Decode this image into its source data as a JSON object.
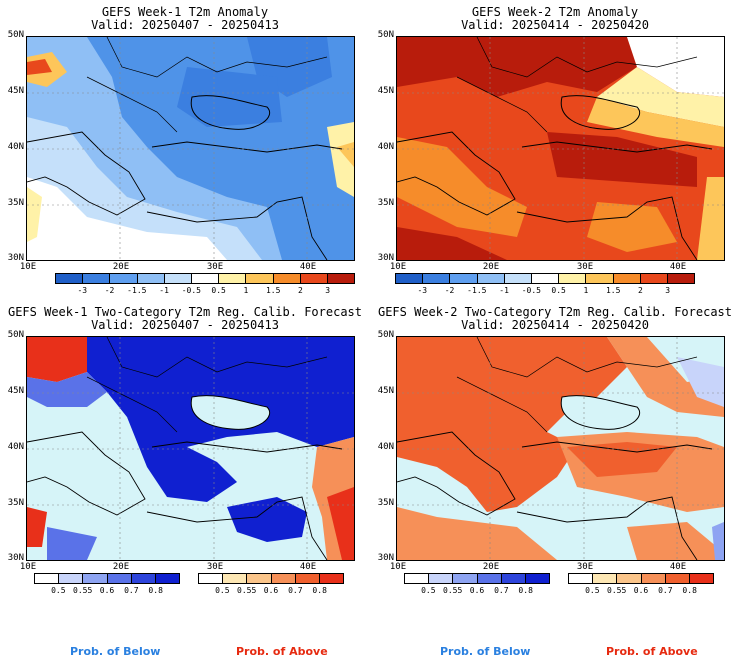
{
  "panels": [
    {
      "title": "GEFS Week-1 T2m Anomaly",
      "valid": "Valid: 20250407 - 20250413"
    },
    {
      "title": "GEFS Week-2 T2m Anomaly",
      "valid": "Valid: 20250414 - 20250420"
    },
    {
      "title": "GEFS Week-1 Two-Category T2m Reg. Calib. Forecast",
      "valid": "Valid: 20250407 - 20250413"
    },
    {
      "title": "GEFS Week-2 Two-Category T2m Reg. Calib. Forecast",
      "valid": "Valid: 20250414 - 20250420"
    }
  ],
  "axes": {
    "lat_labels": [
      "50N",
      "45N",
      "40N",
      "35N",
      "30N"
    ],
    "lon_labels": [
      "10E",
      "20E",
      "30E",
      "40E"
    ]
  },
  "anomaly_colorbar": {
    "labels": [
      "-3",
      "-2",
      "-1.5",
      "-1",
      "-0.5",
      "0.5",
      "1",
      "1.5",
      "2",
      "3"
    ],
    "colors": [
      "#1f5fc8",
      "#3b7fe0",
      "#5f9ff0",
      "#8fbff5",
      "#c5e0fa",
      "#ffffff",
      "#fff2a8",
      "#fdc65a",
      "#f68c2a",
      "#e8481c",
      "#b81c0c"
    ]
  },
  "prob_below_colorbar": {
    "labels": [
      "0.5",
      "0.55",
      "0.6",
      "0.7",
      "0.8"
    ],
    "colors": [
      "#ffffff",
      "#c8d4fa",
      "#8ea4f2",
      "#5a72e8",
      "#2e45dc",
      "#1020d0"
    ]
  },
  "prob_above_colorbar": {
    "labels": [
      "0.5",
      "0.55",
      "0.6",
      "0.7",
      "0.8"
    ],
    "colors": [
      "#ffffff",
      "#fde7b4",
      "#fbc58a",
      "#f69058",
      "#f0602e",
      "#e8301a"
    ]
  },
  "probability_legends": {
    "below": "Prob. of Below",
    "above": "Prob. of Above",
    "below_color": "#2a80e0",
    "above_color": "#e62a10"
  }
}
